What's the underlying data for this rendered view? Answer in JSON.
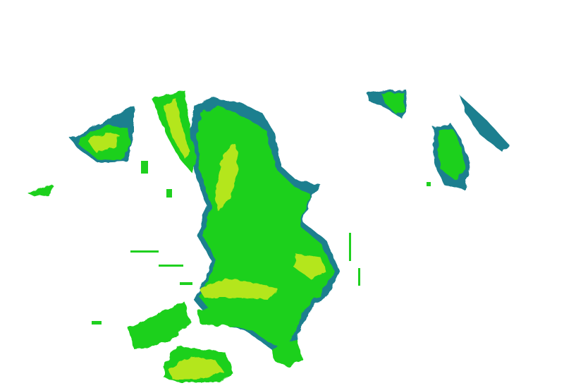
{
  "map": {
    "colors": {
      "background": "#ffffff",
      "low": "#1f7f8f",
      "mid": "#1fd01f",
      "high": "#b4e61a",
      "peak": "#e0e830"
    }
  }
}
